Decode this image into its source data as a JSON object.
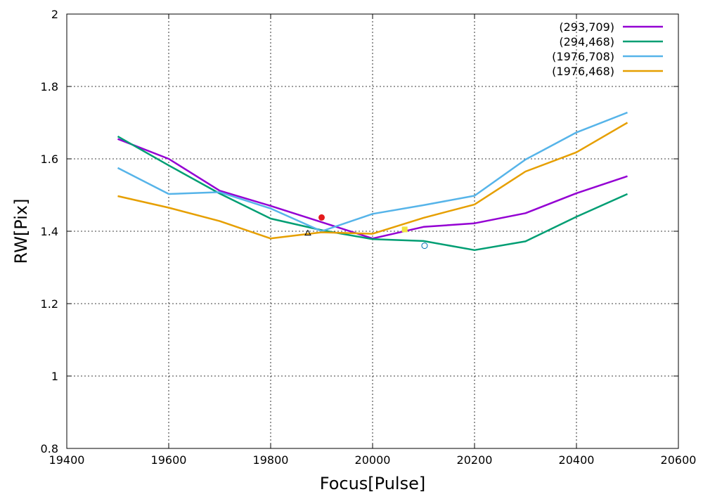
{
  "chart_data": {
    "type": "line",
    "title": "",
    "xlabel": "Focus[Pulse]",
    "ylabel": "RW[Pix]",
    "xlim": [
      19400,
      20600
    ],
    "ylim": [
      0.8,
      2.0
    ],
    "xticks": [
      19400,
      19600,
      19800,
      20000,
      20200,
      20400,
      20600
    ],
    "yticks": [
      0.8,
      1.0,
      1.2,
      1.4,
      1.6,
      1.8,
      2.0
    ],
    "xtick_labels": [
      "19400",
      "19600",
      "19800",
      "20000",
      "20200",
      "20400",
      "20600"
    ],
    "ytick_labels": [
      "0.8",
      "1",
      "1.2",
      "1.4",
      "1.6",
      "1.8",
      "2"
    ],
    "grid": true,
    "legend_position": "top-right",
    "x": [
      19500,
      19600,
      19700,
      19800,
      19900,
      20000,
      20100,
      20200,
      20300,
      20400,
      20500
    ],
    "series": [
      {
        "name": "(293,709)",
        "color": "#9400d3",
        "values": [
          1.655,
          1.6,
          1.512,
          1.47,
          1.425,
          1.38,
          1.412,
          1.422,
          1.45,
          1.505,
          1.552
        ]
      },
      {
        "name": "(294,468)",
        "color": "#009e73",
        "values": [
          1.662,
          1.582,
          1.504,
          1.435,
          1.403,
          1.378,
          1.373,
          1.348,
          1.372,
          1.44,
          1.503
        ]
      },
      {
        "name": "(1976,708)",
        "color": "#56b4e9",
        "values": [
          1.575,
          1.503,
          1.508,
          1.463,
          1.4,
          1.448,
          1.472,
          1.498,
          1.598,
          1.673,
          1.728
        ]
      },
      {
        "name": "(1976,468)",
        "color": "#e69f00",
        "values": [
          1.497,
          1.465,
          1.428,
          1.38,
          1.397,
          1.393,
          1.437,
          1.474,
          1.565,
          1.618,
          1.7
        ]
      }
    ],
    "markers": [
      {
        "shape": "filled-circle",
        "color": "#e41a1c",
        "x": 19900,
        "y": 1.438
      },
      {
        "shape": "filled-square",
        "color": "#f0e442",
        "x": 20063,
        "y": 1.405
      },
      {
        "shape": "open-circle",
        "color": "#0072b2",
        "x": 20102,
        "y": 1.36
      },
      {
        "shape": "open-triangle",
        "color": "#000000",
        "x": 19873,
        "y": 1.395
      }
    ]
  }
}
